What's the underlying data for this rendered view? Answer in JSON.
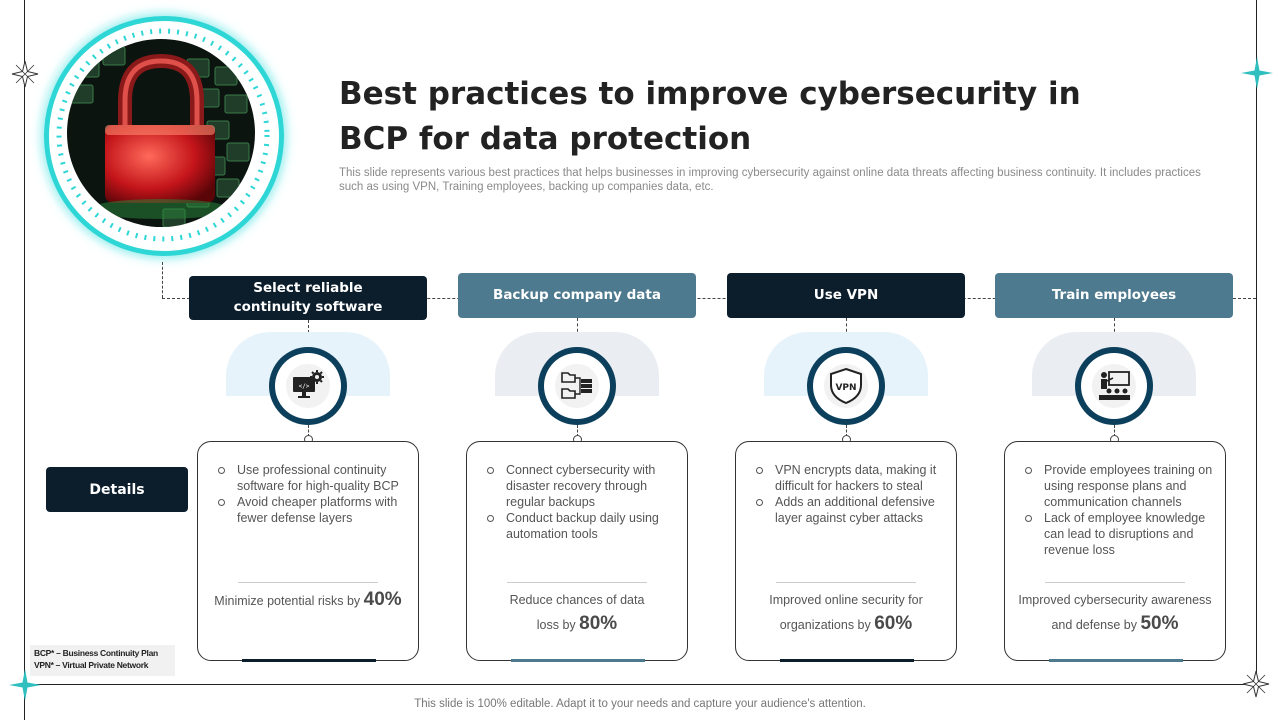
{
  "slide": {
    "title": "Best practices to improve cybersecurity in BCP for data protection",
    "subtitle": "This slide represents various best practices that helps businesses in improving cybersecurity against online data threats affecting business continuity. It includes practices such as using VPN, Training employees, backing up companies data, etc.",
    "footer": "This slide is 100% editable. Adapt it to your needs and capture your audience's attention.",
    "details_label": "Details",
    "legend": [
      "BCP* – Business Continuity Plan",
      "VPN* – Virtual Private Network"
    ],
    "hero_image": "padlock-on-keyboard-image",
    "accent_color": "#2fd6d6",
    "dark_color": "#0c1d2c",
    "steel_color": "#4e7a8f"
  },
  "practices": [
    {
      "heading": "Select reliable continuity software",
      "icon": "computer-gear-code-icon",
      "bullets": [
        "Use professional continuity software for high-quality BCP",
        "Avoid cheaper platforms with fewer defense layers"
      ],
      "summary": "Minimize potential risks by",
      "percent": "40%"
    },
    {
      "heading": "Backup company data",
      "icon": "folder-server-backup-icon",
      "bullets": [
        "Connect cybersecurity with disaster recovery through regular backups",
        "Conduct backup daily using automation tools"
      ],
      "summary": "Reduce chances of data loss by",
      "percent": "80%"
    },
    {
      "heading": "Use VPN",
      "icon": "vpn-shield-icon",
      "icon_text": "VPN",
      "bullets": [
        "VPN encrypts data, making it difficult for hackers to steal",
        "Adds an additional defensive layer against cyber attacks"
      ],
      "summary": "Improved online security for organizations by",
      "percent": "60%"
    },
    {
      "heading": "Train employees",
      "icon": "presentation-training-icon",
      "bullets": [
        "Provide employees training on using response plans and communication channels",
        "Lack of employee knowledge can lead to disruptions and revenue loss"
      ],
      "summary": "Improved cybersecurity awareness and defense by",
      "percent": "50%"
    }
  ]
}
